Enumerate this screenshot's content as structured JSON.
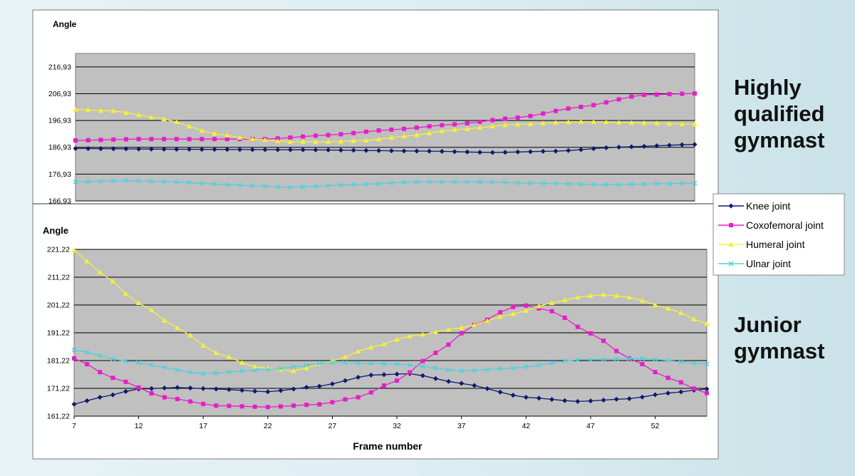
{
  "side_labels": {
    "top": [
      "Highly",
      "qualified",
      "gymnast"
    ],
    "bottom": [
      "Junior",
      "gymnast"
    ]
  },
  "colors": {
    "knee": "#0d1a6e",
    "coxofemoral": "#e61ec9",
    "humeral": "#f5f03a",
    "ulnar": "#4fd0de",
    "plot_bg": "#c0c0c0",
    "gridline": "#000000"
  },
  "legend": {
    "placement": "right-middle",
    "items": [
      {
        "label": "Knee joint",
        "series": "knee",
        "marker": "diamond"
      },
      {
        "label": "Coxofemoral joint",
        "series": "coxofemoral",
        "marker": "square"
      },
      {
        "label": "Humeral joint",
        "series": "humeral",
        "marker": "triangle"
      },
      {
        "label": "Ulnar joint",
        "series": "ulnar",
        "marker": "x"
      }
    ]
  },
  "chart_data": [
    {
      "type": "line",
      "ylabel": "Angle",
      "xlabel": "",
      "x_range": [
        7,
        56
      ],
      "ylim": [
        166.93,
        221.93
      ],
      "yticks": [
        "216,93",
        "206,93",
        "196,93",
        "186,93",
        "176,93",
        "166,93"
      ],
      "ytick_values": [
        216.93,
        206.93,
        196.93,
        186.93,
        176.93,
        166.93
      ],
      "grid": true,
      "series": [
        {
          "key": "knee",
          "name": "Knee joint",
          "points": [
            [
              7,
              186.5
            ],
            [
              15,
              186.2
            ],
            [
              25,
              186.0
            ],
            [
              35,
              185.5
            ],
            [
              40,
              185.0
            ],
            [
              45,
              185.5
            ],
            [
              50,
              187.0
            ],
            [
              56,
              188.0
            ]
          ]
        },
        {
          "key": "coxofemoral",
          "name": "Coxofemoral joint",
          "points": [
            [
              7,
              189.5
            ],
            [
              12,
              190.0
            ],
            [
              17,
              190.0
            ],
            [
              22,
              190.0
            ],
            [
              27,
              191.5
            ],
            [
              32,
              193.5
            ],
            [
              37,
              195.5
            ],
            [
              42,
              198.0
            ],
            [
              47,
              202.0
            ],
            [
              52,
              206.5
            ],
            [
              56,
              207.0
            ]
          ]
        },
        {
          "key": "humeral",
          "name": "Humeral joint",
          "points": [
            [
              7,
              201.0
            ],
            [
              10,
              200.5
            ],
            [
              14,
              197.5
            ],
            [
              18,
              192.0
            ],
            [
              21,
              190.0
            ],
            [
              24,
              189.0
            ],
            [
              27,
              189.0
            ],
            [
              30,
              189.5
            ],
            [
              33,
              191.0
            ],
            [
              37,
              193.5
            ],
            [
              42,
              195.5
            ],
            [
              47,
              196.5
            ],
            [
              52,
              196.0
            ],
            [
              56,
              195.5
            ]
          ]
        },
        {
          "key": "ulnar",
          "name": "Ulnar joint",
          "points": [
            [
              7,
              174.0
            ],
            [
              11,
              174.5
            ],
            [
              15,
              174.0
            ],
            [
              19,
              173.0
            ],
            [
              24,
              172.0
            ],
            [
              29,
              173.0
            ],
            [
              34,
              174.0
            ],
            [
              39,
              174.0
            ],
            [
              44,
              173.5
            ],
            [
              49,
              173.0
            ],
            [
              56,
              173.5
            ]
          ]
        }
      ]
    },
    {
      "type": "line",
      "ylabel": "Angle",
      "xlabel": "Frame number",
      "x_range": [
        7,
        56
      ],
      "ylim": [
        161.22,
        221.22
      ],
      "yticks": [
        "221,22",
        "211,22",
        "201,22",
        "191,22",
        "181,22",
        "171,22",
        "161,22"
      ],
      "ytick_values": [
        221.22,
        211.22,
        201.22,
        191.22,
        181.22,
        171.22,
        161.22
      ],
      "xticks": [
        "7",
        "12",
        "17",
        "22",
        "27",
        "32",
        "37",
        "42",
        "47",
        "52"
      ],
      "xtick_values": [
        7,
        12,
        17,
        22,
        27,
        32,
        37,
        42,
        47,
        52
      ],
      "grid": true,
      "series": [
        {
          "key": "knee",
          "name": "Knee joint",
          "points": [
            [
              7,
              165.5
            ],
            [
              9,
              168.0
            ],
            [
              12,
              171.0
            ],
            [
              15,
              171.5
            ],
            [
              18,
              171.0
            ],
            [
              22,
              170.0
            ],
            [
              26,
              172.0
            ],
            [
              30,
              176.0
            ],
            [
              33,
              176.5
            ],
            [
              37,
              173.0
            ],
            [
              42,
              168.0
            ],
            [
              46,
              166.5
            ],
            [
              50,
              167.5
            ],
            [
              53,
              169.5
            ],
            [
              56,
              171.0
            ]
          ]
        },
        {
          "key": "coxofemoral",
          "name": "Coxofemoral joint",
          "points": [
            [
              7,
              182.0
            ],
            [
              10,
              175.0
            ],
            [
              14,
              168.0
            ],
            [
              18,
              165.0
            ],
            [
              22,
              164.5
            ],
            [
              26,
              165.5
            ],
            [
              29,
              168.0
            ],
            [
              32,
              174.0
            ],
            [
              35,
              184.0
            ],
            [
              38,
              194.0
            ],
            [
              41,
              200.5
            ],
            [
              42,
              201.0
            ],
            [
              44,
              199.0
            ],
            [
              47,
              191.0
            ],
            [
              50,
              182.0
            ],
            [
              53,
              175.0
            ],
            [
              56,
              169.5
            ]
          ]
        },
        {
          "key": "humeral",
          "name": "Humeral joint",
          "points": [
            [
              7,
              221.0
            ],
            [
              9,
              213.0
            ],
            [
              12,
              202.0
            ],
            [
              15,
              193.0
            ],
            [
              18,
              184.0
            ],
            [
              21,
              179.0
            ],
            [
              24,
              177.5
            ],
            [
              27,
              181.0
            ],
            [
              30,
              186.0
            ],
            [
              33,
              190.0
            ],
            [
              37,
              193.0
            ],
            [
              41,
              198.0
            ],
            [
              44,
              202.0
            ],
            [
              46,
              204.0
            ],
            [
              48,
              205.0
            ],
            [
              50,
              204.0
            ],
            [
              53,
              200.0
            ],
            [
              56,
              194.5
            ]
          ]
        },
        {
          "key": "ulnar",
          "name": "Ulnar joint",
          "points": [
            [
              7,
              185.0
            ],
            [
              11,
              181.0
            ],
            [
              17,
              176.5
            ],
            [
              22,
              178.0
            ],
            [
              27,
              180.5
            ],
            [
              32,
              180.0
            ],
            [
              37,
              177.5
            ],
            [
              41,
              178.5
            ],
            [
              46,
              181.5
            ],
            [
              51,
              182.0
            ],
            [
              56,
              180.0
            ]
          ]
        }
      ]
    }
  ]
}
